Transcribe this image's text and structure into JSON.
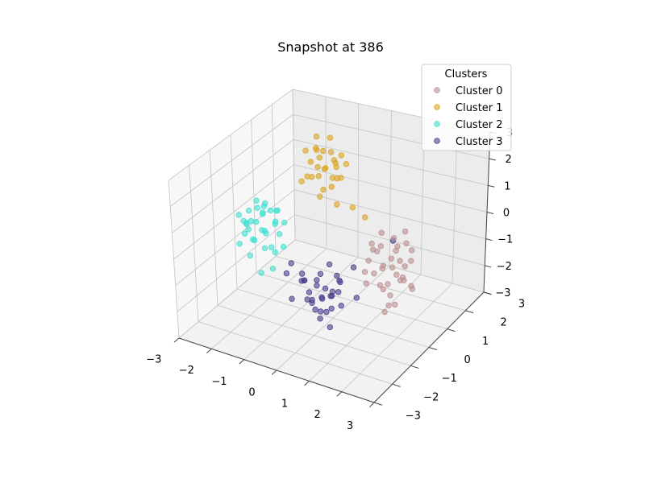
{
  "chart_data": {
    "type": "scatter",
    "title": "Snapshot at 386",
    "xlim": [
      -3,
      3
    ],
    "ylim": [
      -3,
      3
    ],
    "zlim": [
      -3,
      3
    ],
    "x_ticks": [
      "−3",
      "−2",
      "−1",
      "0",
      "1",
      "2",
      "3"
    ],
    "y_ticks": [
      "−3",
      "−2",
      "−1",
      "0",
      "1",
      "2",
      "3"
    ],
    "z_ticks": [
      "−3",
      "−2",
      "−1",
      "0",
      "1",
      "2",
      "3"
    ],
    "grid": true,
    "legend": {
      "title": "Clusters",
      "placement": "top-right"
    },
    "series": [
      {
        "name": "Cluster 0",
        "color": "#bc8f8f",
        "points": [
          [
            1.8,
            -0.9,
            0.6
          ],
          [
            2.2,
            -0.5,
            0.9
          ],
          [
            2.5,
            -0.7,
            0.3
          ],
          [
            2.0,
            -1.2,
            0.0
          ],
          [
            2.3,
            -1.0,
            -0.4
          ],
          [
            2.6,
            -0.3,
            0.1
          ],
          [
            1.9,
            -0.6,
            -0.2
          ],
          [
            2.4,
            -1.4,
            0.5
          ],
          [
            2.1,
            -0.2,
            -0.6
          ],
          [
            2.7,
            -0.9,
            -0.1
          ],
          [
            2.0,
            -0.8,
            1.2
          ],
          [
            2.5,
            -1.3,
            -0.9
          ],
          [
            2.2,
            -0.4,
            0.4
          ],
          [
            1.7,
            -1.1,
            -0.5
          ],
          [
            2.8,
            -0.6,
            0.7
          ],
          [
            2.3,
            -0.1,
            -0.3
          ],
          [
            2.6,
            -1.0,
            1.0
          ],
          [
            1.9,
            -1.5,
            0.2
          ],
          [
            2.4,
            -0.8,
            -1.2
          ],
          [
            2.1,
            -1.2,
            0.8
          ],
          [
            2.7,
            -0.4,
            -0.8
          ],
          [
            2.0,
            -0.3,
            0.0
          ],
          [
            2.5,
            -1.1,
            0.3
          ],
          [
            2.2,
            -0.7,
            -1.0
          ],
          [
            1.8,
            -0.5,
            0.5
          ],
          [
            2.9,
            -0.8,
            -0.4
          ],
          [
            2.3,
            -1.4,
            -0.2
          ],
          [
            2.6,
            -0.6,
            1.3
          ],
          [
            2.1,
            -0.9,
            -0.7
          ],
          [
            2.4,
            -0.2,
            0.6
          ],
          [
            1.6,
            -0.8,
            0.1
          ],
          [
            2.8,
            -1.2,
            0.0
          ],
          [
            2.2,
            -1.0,
            -1.4
          ],
          [
            2.5,
            -0.5,
            -0.5
          ],
          [
            2.0,
            -1.3,
            1.1
          ]
        ]
      },
      {
        "name": "Cluster 1",
        "color": "#daa520",
        "points": [
          [
            -1.2,
            1.4,
            1.8
          ],
          [
            -0.9,
            1.7,
            1.5
          ],
          [
            -1.5,
            1.2,
            2.1
          ],
          [
            -1.0,
            1.9,
            1.2
          ],
          [
            -1.3,
            1.5,
            1.0
          ],
          [
            -0.7,
            1.3,
            1.9
          ],
          [
            -1.6,
            1.6,
            1.4
          ],
          [
            -1.1,
            1.1,
            2.3
          ],
          [
            -0.8,
            1.8,
            0.9
          ],
          [
            -1.4,
            1.9,
            1.7
          ],
          [
            -1.2,
            1.0,
            1.3
          ],
          [
            -0.6,
            1.5,
            2.0
          ],
          [
            -1.7,
            1.3,
            0.8
          ],
          [
            -1.0,
            1.6,
            2.5
          ],
          [
            -1.3,
            1.8,
            1.1
          ],
          [
            -0.9,
            1.2,
            1.6
          ],
          [
            -1.5,
            1.7,
            1.9
          ],
          [
            -1.1,
            1.4,
            0.6
          ],
          [
            -0.7,
            1.9,
            1.4
          ],
          [
            -1.4,
            1.1,
            1.2
          ],
          [
            -0.5,
            1.1,
            0.4
          ],
          [
            -0.2,
            1.4,
            0.2
          ],
          [
            -0.9,
            0.9,
            0.7
          ],
          [
            0.3,
            1.2,
            0.1
          ],
          [
            -1.0,
            1.7,
            0.9
          ],
          [
            -1.2,
            1.3,
            1.5
          ],
          [
            -0.8,
            1.6,
            1.0
          ],
          [
            -1.6,
            1.9,
            2.2
          ],
          [
            -1.1,
            1.8,
            1.8
          ],
          [
            -0.6,
            1.0,
            1.1
          ]
        ]
      },
      {
        "name": "Cluster 2",
        "color": "#40e0d0",
        "points": [
          [
            -1.8,
            -0.5,
            0.6
          ],
          [
            -1.5,
            -0.9,
            0.3
          ],
          [
            -2.1,
            -0.3,
            0.9
          ],
          [
            -1.7,
            -1.1,
            0.0
          ],
          [
            -2.0,
            -0.7,
            -0.3
          ],
          [
            -1.4,
            -0.4,
            0.8
          ],
          [
            -2.2,
            -0.8,
            0.4
          ],
          [
            -1.6,
            -0.2,
            0.2
          ],
          [
            -1.9,
            -1.0,
            1.0
          ],
          [
            -1.3,
            -0.7,
            0.5
          ],
          [
            -2.3,
            -0.5,
            0.1
          ],
          [
            -1.8,
            -1.3,
            0.7
          ],
          [
            -1.5,
            -0.6,
            -0.5
          ],
          [
            -2.0,
            -0.1,
            0.6
          ],
          [
            -1.7,
            -0.9,
            1.1
          ],
          [
            -2.1,
            -1.2,
            -0.2
          ],
          [
            -1.4,
            -1.0,
            0.3
          ],
          [
            -1.9,
            -0.4,
            -0.1
          ],
          [
            -1.6,
            -0.8,
            0.9
          ],
          [
            -2.2,
            -0.2,
            0.0
          ],
          [
            -1.2,
            -0.9,
            -0.4
          ],
          [
            -1.8,
            -1.4,
            0.4
          ],
          [
            -1.5,
            -0.3,
            0.7
          ],
          [
            -2.0,
            -0.9,
            0.2
          ],
          [
            -1.7,
            -0.6,
            -0.6
          ],
          [
            -1.1,
            -1.2,
            -0.8
          ],
          [
            -1.6,
            -1.5,
            -0.3
          ],
          [
            -2.4,
            -0.7,
            0.5
          ],
          [
            -1.3,
            -0.5,
            0.0
          ],
          [
            -1.9,
            -0.2,
            0.8
          ],
          [
            -1.0,
            -0.8,
            -0.2
          ],
          [
            -1.4,
            -1.3,
            -1.0
          ],
          [
            -2.1,
            -0.6,
            0.3
          ],
          [
            -1.8,
            -0.1,
            0.5
          ],
          [
            -1.2,
            -0.4,
            0.4
          ]
        ]
      },
      {
        "name": "Cluster 3",
        "color": "#483d8b",
        "points": [
          [
            0.3,
            -1.3,
            -0.9
          ],
          [
            0.6,
            -1.0,
            -1.2
          ],
          [
            0.1,
            -1.6,
            -0.6
          ],
          [
            0.8,
            -1.4,
            -1.5
          ],
          [
            0.4,
            -0.8,
            -0.4
          ],
          [
            0.0,
            -1.2,
            -1.3
          ],
          [
            0.7,
            -1.7,
            -1.0
          ],
          [
            0.2,
            -0.9,
            -1.6
          ],
          [
            0.9,
            -1.1,
            -0.7
          ],
          [
            0.5,
            -1.5,
            -1.9
          ],
          [
            -0.1,
            -1.4,
            -0.8
          ],
          [
            0.6,
            -0.7,
            -1.4
          ],
          [
            0.3,
            -1.8,
            -1.1
          ],
          [
            1.0,
            -1.3,
            -0.5
          ],
          [
            0.4,
            -1.0,
            -2.0
          ],
          [
            -0.2,
            -1.1,
            -1.0
          ],
          [
            0.8,
            -0.9,
            -1.7
          ],
          [
            0.1,
            -1.7,
            -0.3
          ],
          [
            0.7,
            -1.2,
            -1.2
          ],
          [
            0.2,
            -1.4,
            -1.5
          ],
          [
            0.5,
            -0.6,
            -0.9
          ],
          [
            -0.3,
            -1.6,
            -1.4
          ],
          [
            0.9,
            -1.6,
            -0.9
          ],
          [
            0.4,
            -1.3,
            -1.8
          ],
          [
            0.0,
            -0.8,
            -1.1
          ],
          [
            1.2,
            -0.9,
            -0.2
          ],
          [
            -0.5,
            -1.5,
            -0.6
          ],
          [
            1.4,
            -1.1,
            -1.1
          ],
          [
            0.6,
            -1.9,
            -1.3
          ],
          [
            0.3,
            -1.1,
            -0.6
          ],
          [
            0.8,
            -1.5,
            -2.1
          ],
          [
            -0.1,
            -0.9,
            -1.8
          ],
          [
            1.7,
            0.3,
            0.2
          ],
          [
            -0.9,
            -0.6,
            -0.9
          ],
          [
            0.5,
            -1.2,
            -1.0
          ]
        ]
      }
    ]
  }
}
